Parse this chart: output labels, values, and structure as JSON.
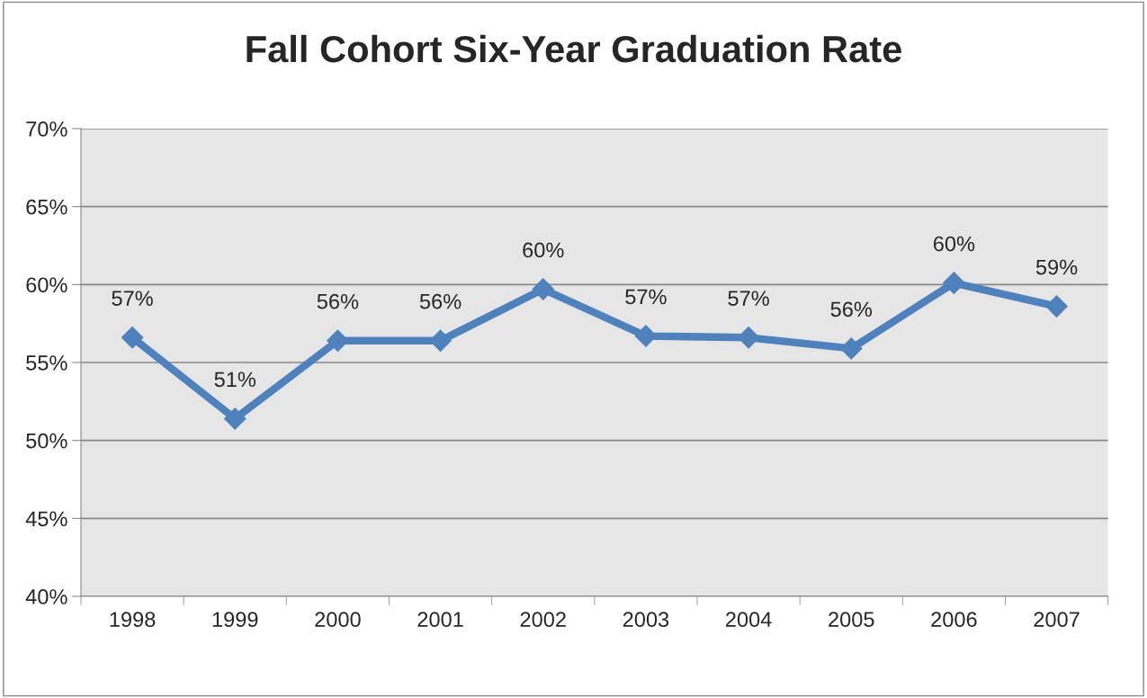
{
  "chart_data": {
    "type": "line",
    "title": "Fall Cohort Six-Year Graduation Rate",
    "categories": [
      "1998",
      "1999",
      "2000",
      "2001",
      "2002",
      "2003",
      "2004",
      "2005",
      "2006",
      "2007"
    ],
    "series": [
      {
        "color": "#4f81bd",
        "values": [
          56.6,
          51.4,
          56.4,
          56.4,
          59.7,
          56.7,
          56.6,
          55.9,
          60.1,
          58.6
        ],
        "value_labels": [
          "57%",
          "51%",
          "56%",
          "56%",
          "60%",
          "57%",
          "57%",
          "56%",
          "60%",
          "59%"
        ]
      }
    ],
    "ylim": [
      40,
      70
    ],
    "yticks": [
      {
        "value": 40,
        "label": "40%"
      },
      {
        "value": 45,
        "label": "45%"
      },
      {
        "value": 50,
        "label": "50%"
      },
      {
        "value": 55,
        "label": "55%"
      },
      {
        "value": 60,
        "label": "60%"
      },
      {
        "value": 65,
        "label": "65%"
      },
      {
        "value": 70,
        "label": "70%"
      }
    ],
    "grid": "y",
    "marker": "diamond",
    "line_style": "solid",
    "legend": false
  }
}
